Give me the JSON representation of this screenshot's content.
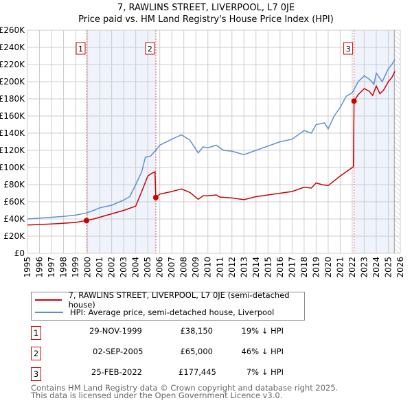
{
  "chart_data": {
    "type": "line",
    "title": "7, RAWLINS STREET, LIVERPOOL, L7 0JE",
    "subtitle": "Price paid vs. HM Land Registry's House Price Index (HPI)",
    "xlim": [
      1995,
      2026
    ],
    "ylim": [
      0,
      260000
    ],
    "y_ticks": [
      "£0",
      "£20K",
      "£40K",
      "£60K",
      "£80K",
      "£100K",
      "£120K",
      "£140K",
      "£160K",
      "£180K",
      "£200K",
      "£220K",
      "£240K",
      "£260K"
    ],
    "x_ticks": [
      "1995",
      "1996",
      "1997",
      "1998",
      "1999",
      "2000",
      "2001",
      "2002",
      "2003",
      "2004",
      "2005",
      "2006",
      "2007",
      "2008",
      "2009",
      "2010",
      "2011",
      "2012",
      "2013",
      "2014",
      "2015",
      "2016",
      "2017",
      "2018",
      "2019",
      "2020",
      "2021",
      "2022",
      "2023",
      "2024",
      "2025",
      "2026"
    ],
    "grid": true,
    "series": [
      {
        "name": "7, RAWLINS STREET, LIVERPOOL, L7 0JE (semi-detached house)",
        "color": "#cc0000",
        "x": [
          1995,
          1996,
          1997,
          1998,
          1999,
          1999.9,
          2000.5,
          2001,
          2002,
          2003,
          2004,
          2004.5,
          2005,
          2005.3,
          2005.6,
          2005.67,
          2006,
          2007,
          2007.8,
          2008.5,
          2009.2,
          2009.6,
          2010,
          2010.7,
          2011,
          2012,
          2013,
          2014,
          2015,
          2016,
          2017,
          2018,
          2018.6,
          2019,
          2019.5,
          2020,
          2021,
          2022.1,
          2022.15,
          2022.5,
          2023,
          2023.4,
          2023.7,
          2024,
          2024.3,
          2024.6,
          2025,
          2025.3,
          2025.55
        ],
        "y": [
          33000,
          33500,
          34200,
          35000,
          36000,
          38150,
          40000,
          42000,
          46000,
          50000,
          55000,
          72000,
          90000,
          93000,
          95000,
          65000,
          69000,
          72000,
          75000,
          71000,
          63000,
          67000,
          67000,
          68000,
          65500,
          64500,
          62500,
          66000,
          68000,
          70000,
          72000,
          77000,
          76000,
          82000,
          80000,
          79000,
          90000,
          101000,
          177445,
          185000,
          192000,
          189000,
          184000,
          195000,
          186000,
          190000,
          200000,
          205000,
          212000
        ]
      },
      {
        "name": "HPI: Average price, semi-detached house, Liverpool",
        "color": "#5b8fd4",
        "x": [
          1995,
          1996,
          1997,
          1998,
          1999,
          1999.9,
          2000.5,
          2001,
          2002,
          2003,
          2003.5,
          2004,
          2004.5,
          2004.8,
          2005.2,
          2005.67,
          2006,
          2007,
          2007.8,
          2008.5,
          2009.2,
          2009.6,
          2010,
          2010.7,
          2011.3,
          2012,
          2013,
          2014,
          2015,
          2016,
          2017,
          2018,
          2018.6,
          2019,
          2019.7,
          2020,
          2020.5,
          2021,
          2021.5,
          2022,
          2022.5,
          2023,
          2023.5,
          2023.8,
          2024,
          2024.5,
          2025,
          2025.3,
          2025.55
        ],
        "y": [
          40000,
          41000,
          42000,
          43000,
          44500,
          47000,
          50000,
          53000,
          56000,
          62000,
          66000,
          80000,
          95000,
          112000,
          113000,
          120000,
          126000,
          133000,
          138000,
          132000,
          117000,
          124000,
          123000,
          126000,
          120000,
          119000,
          115000,
          120000,
          125000,
          130000,
          133000,
          143000,
          140000,
          150000,
          152000,
          145000,
          160000,
          170000,
          183000,
          187000,
          200000,
          207000,
          202000,
          197000,
          210000,
          200000,
          215000,
          220000,
          226000
        ]
      }
    ],
    "sales": [
      {
        "label": "1",
        "x": 1999.91,
        "y": 38150
      },
      {
        "label": "2",
        "x": 2005.67,
        "y": 65000
      },
      {
        "label": "3",
        "x": 2022.15,
        "y": 177445
      }
    ],
    "shaded_ranges": [
      [
        1999.91,
        2005.67
      ],
      [
        2022.15,
        2025.5
      ]
    ],
    "hatched_from": 2025.5
  },
  "legend": {
    "property": "7, RAWLINS STREET, LIVERPOOL, L7 0JE (semi-detached house)",
    "hpi": "HPI: Average price, semi-detached house, Liverpool"
  },
  "transactions": [
    {
      "num": "1",
      "date": "29-NOV-1999",
      "price": "£38,150",
      "pct": "19% ↓ HPI"
    },
    {
      "num": "2",
      "date": "02-SEP-2005",
      "price": "£65,000",
      "pct": "46% ↓ HPI"
    },
    {
      "num": "3",
      "date": "25-FEB-2022",
      "price": "£177,445",
      "pct": "7% ↓ HPI"
    }
  ],
  "footer": {
    "line1": "Contains HM Land Registry data © Crown copyright and database right 2025.",
    "line2": "This data is licensed under the Open Government Licence v3.0."
  }
}
